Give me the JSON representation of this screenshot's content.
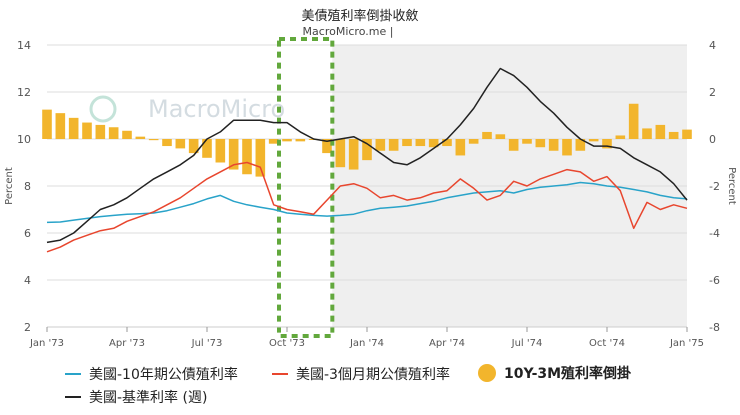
{
  "chart_data": {
    "type": "line",
    "title": "美債殖利率倒掛收斂",
    "subtitle": "MacroMicro.me |",
    "watermark": "MacroMicro",
    "ylabel_left": "Percent",
    "ylabel_right": "Percent",
    "ylim_left": [
      2,
      14
    ],
    "ylim_right": [
      -8,
      4
    ],
    "yticks_left": [
      "2",
      "4",
      "6",
      "8",
      "10",
      "12",
      "14"
    ],
    "yticks_right": [
      "-8",
      "-6",
      "-4",
      "-2",
      "0",
      "2",
      "4"
    ],
    "x_ticks": [
      "Jan '73",
      "Apr '73",
      "Jul '73",
      "Oct '73",
      "Jan '74",
      "Apr '74",
      "Jul '74",
      "Oct '74",
      "Jan '75"
    ],
    "shaded_region": {
      "from": 10.7,
      "to": 24
    },
    "highlight_box": {
      "from": 8.7,
      "to": 10.7
    },
    "colors": {
      "ten_year": "#29a3c9",
      "three_month": "#e8462e",
      "spread": "#f2b52c",
      "fed_funds": "#222222",
      "shade": "#efefef",
      "highlight": "#62a83c"
    },
    "series": [
      {
        "name": "美國-10年期公債殖利率",
        "axis": "left",
        "style": "line",
        "x": [
          0,
          0.5,
          1,
          1.5,
          2,
          2.5,
          3,
          3.5,
          4,
          4.5,
          5,
          5.5,
          6,
          6.5,
          7,
          7.5,
          8,
          8.5,
          9,
          9.5,
          10,
          10.5,
          11,
          11.5,
          12,
          12.5,
          13,
          13.5,
          14,
          14.5,
          15,
          15.5,
          16,
          16.5,
          17,
          17.5,
          18,
          18.5,
          19,
          19.5,
          20,
          20.5,
          21,
          21.5,
          22,
          22.5,
          23,
          23.5,
          24
        ],
        "values": [
          6.45,
          6.47,
          6.55,
          6.62,
          6.7,
          6.75,
          6.8,
          6.82,
          6.85,
          6.95,
          7.1,
          7.25,
          7.45,
          7.6,
          7.35,
          7.2,
          7.1,
          7.0,
          6.85,
          6.8,
          6.75,
          6.72,
          6.75,
          6.8,
          6.95,
          7.05,
          7.1,
          7.15,
          7.25,
          7.35,
          7.5,
          7.6,
          7.7,
          7.75,
          7.8,
          7.7,
          7.85,
          7.95,
          8.0,
          8.05,
          8.15,
          8.1,
          8.0,
          7.95,
          7.85,
          7.75,
          7.6,
          7.5,
          7.45
        ]
      },
      {
        "name": "美國-3個月期公債殖利率",
        "axis": "left",
        "style": "line",
        "x": [
          0,
          0.5,
          1,
          1.5,
          2,
          2.5,
          3,
          3.5,
          4,
          4.5,
          5,
          5.5,
          6,
          6.5,
          7,
          7.5,
          8,
          8.5,
          9,
          9.5,
          10,
          10.5,
          11,
          11.5,
          12,
          12.5,
          13,
          13.5,
          14,
          14.5,
          15,
          15.5,
          16,
          16.5,
          17,
          17.5,
          18,
          18.5,
          19,
          19.5,
          20,
          20.5,
          21,
          21.5,
          22,
          22.5,
          23,
          23.5,
          24
        ],
        "values": [
          5.2,
          5.4,
          5.7,
          5.9,
          6.1,
          6.2,
          6.5,
          6.7,
          6.9,
          7.2,
          7.5,
          7.9,
          8.3,
          8.6,
          8.9,
          9.0,
          8.8,
          7.2,
          7.0,
          6.9,
          6.8,
          7.4,
          8.0,
          8.1,
          7.9,
          7.5,
          7.6,
          7.4,
          7.5,
          7.7,
          7.8,
          8.3,
          7.9,
          7.4,
          7.6,
          8.2,
          8.0,
          8.3,
          8.5,
          8.7,
          8.6,
          8.2,
          8.4,
          7.8,
          6.2,
          7.3,
          7.0,
          7.2,
          7.05
        ]
      },
      {
        "name": "美國-基準利率 (週)",
        "axis": "left",
        "style": "line",
        "x": [
          0,
          0.5,
          1,
          1.5,
          2,
          2.5,
          3,
          3.5,
          4,
          4.5,
          5,
          5.5,
          6,
          6.5,
          7,
          7.5,
          8,
          8.5,
          9,
          9.5,
          10,
          10.5,
          11,
          11.5,
          12,
          12.5,
          13,
          13.5,
          14,
          14.5,
          15,
          15.5,
          16,
          16.5,
          17,
          17.5,
          18,
          18.5,
          19,
          19.5,
          20,
          20.5,
          21,
          21.5,
          22,
          22.5,
          23,
          23.5,
          24
        ],
        "values": [
          5.6,
          5.7,
          6.0,
          6.5,
          7.0,
          7.2,
          7.5,
          7.9,
          8.3,
          8.6,
          8.9,
          9.3,
          10.0,
          10.3,
          10.8,
          10.8,
          10.8,
          10.7,
          10.7,
          10.3,
          10.0,
          9.9,
          10.0,
          10.1,
          9.8,
          9.4,
          9.0,
          8.9,
          9.2,
          9.6,
          10.0,
          10.6,
          11.3,
          12.2,
          13.0,
          12.7,
          12.2,
          11.6,
          11.1,
          10.5,
          10.0,
          9.7,
          9.7,
          9.6,
          9.2,
          8.9,
          8.6,
          8.1,
          7.4
        ]
      },
      {
        "name": "10Y-3M殖利率倒掛",
        "axis": "right",
        "style": "bar",
        "x": [
          0,
          0.5,
          1,
          1.5,
          2,
          2.5,
          3,
          3.5,
          4,
          4.5,
          5,
          5.5,
          6,
          6.5,
          7,
          7.5,
          8,
          8.5,
          9,
          9.5,
          10,
          10.5,
          11,
          11.5,
          12,
          12.5,
          13,
          13.5,
          14,
          14.5,
          15,
          15.5,
          16,
          16.5,
          17,
          17.5,
          18,
          18.5,
          19,
          19.5,
          20,
          20.5,
          21,
          21.5,
          22,
          22.5,
          23,
          23.5,
          24
        ],
        "values": [
          1.25,
          1.1,
          0.9,
          0.7,
          0.6,
          0.5,
          0.35,
          0.1,
          -0.05,
          -0.3,
          -0.4,
          -0.6,
          -0.8,
          -1.0,
          -1.3,
          -1.5,
          -1.6,
          -0.2,
          -0.1,
          -0.1,
          0.0,
          -0.6,
          -1.2,
          -1.3,
          -0.9,
          -0.5,
          -0.5,
          -0.3,
          -0.3,
          -0.35,
          -0.3,
          -0.7,
          -0.2,
          0.3,
          0.2,
          -0.5,
          -0.2,
          -0.35,
          -0.5,
          -0.7,
          -0.5,
          -0.1,
          -0.4,
          0.15,
          1.5,
          0.45,
          0.6,
          0.3,
          0.4
        ]
      }
    ],
    "legend": [
      "美國-10年期公債殖利率",
      "美國-3個月期公債殖利率",
      "10Y-3M殖利率倒掛",
      "美國-基準利率 (週)"
    ]
  }
}
